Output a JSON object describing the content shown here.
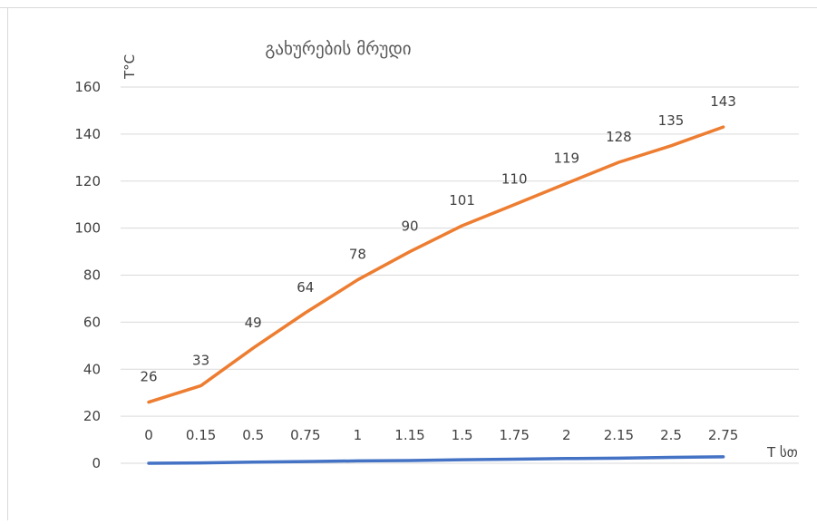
{
  "chart_data": {
    "type": "line",
    "title": "გახურების მრუდი",
    "ylabel": "T°C",
    "xlabel": "T სთ",
    "ylim": [
      0,
      160
    ],
    "yticks": [
      0,
      20,
      40,
      60,
      80,
      100,
      120,
      140,
      160
    ],
    "grid": true,
    "categories": [
      "0",
      "0.15",
      "0.5",
      "0.75",
      "1",
      "1.15",
      "1.5",
      "1.75",
      "2",
      "2.15",
      "2.5",
      "2.75"
    ],
    "series": [
      {
        "values": [
          0,
          0.15,
          0.5,
          0.75,
          1,
          1.15,
          1.5,
          1.75,
          2,
          2.15,
          2.5,
          2.75
        ],
        "color": "#4472c4",
        "labels": [
          "0",
          "0.15",
          "0.5",
          "0.75",
          "1",
          "1.15",
          "1.5",
          "1.75",
          "2",
          "2.15",
          "2.5",
          "2.75"
        ]
      },
      {
        "values": [
          26,
          33,
          49,
          64,
          78,
          90,
          101,
          110,
          119,
          128,
          135,
          143
        ],
        "color": "#ed7d31",
        "labels": [
          "26",
          "33",
          "49",
          "64",
          "78",
          "90",
          "101",
          "110",
          "119",
          "128",
          "135",
          "143"
        ]
      }
    ]
  }
}
